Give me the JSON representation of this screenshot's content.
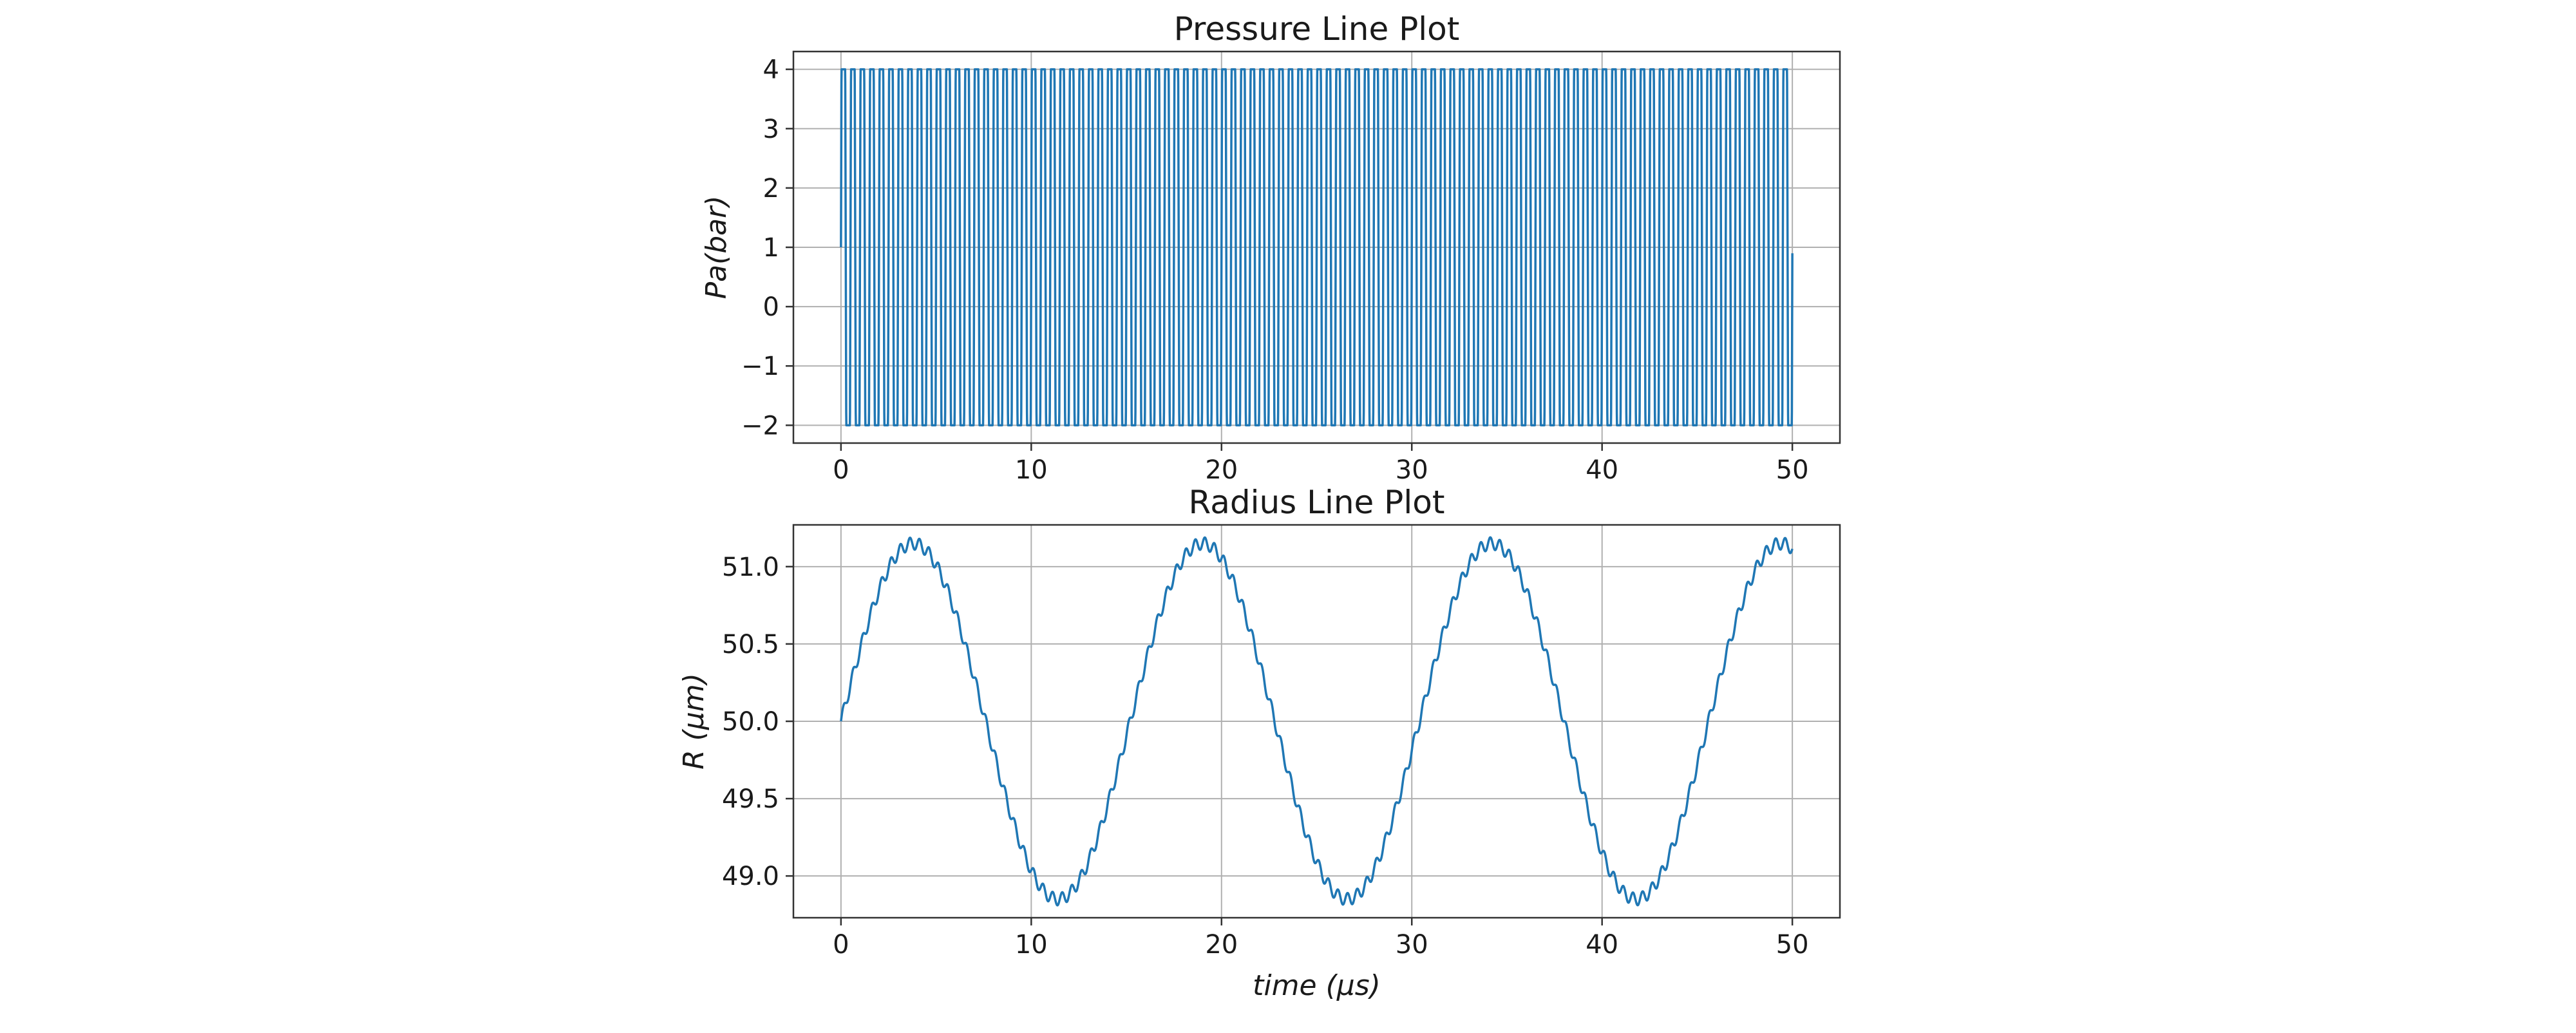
{
  "chart_data": [
    {
      "type": "line",
      "title": "Pressure Line Plot",
      "xlabel": "",
      "ylabel": "Pa(bar)",
      "xlim": [
        -2.5,
        52.5
      ],
      "ylim": [
        -2.3,
        4.3
      ],
      "xticks": [
        0,
        10,
        20,
        30,
        40,
        50
      ],
      "xtick_labels": [
        "0",
        "10",
        "20",
        "30",
        "40",
        "50"
      ],
      "yticks": [
        -2,
        -1,
        0,
        1,
        2,
        3,
        4
      ],
      "ytick_labels": [
        "−2",
        "−1",
        "0",
        "1",
        "2",
        "3",
        "4"
      ],
      "grid": true,
      "line_color": "#1f77b4",
      "signal": {
        "description": "square-like oscillation between -2 and 4 with ~2 cycles per microsecond",
        "x_range": [
          0,
          50
        ],
        "start_value": 1,
        "end_value": 0.9,
        "min": -2,
        "max": 4,
        "frequency_cycles_per_unit": 2
      }
    },
    {
      "type": "line",
      "title": "Radius Line Plot",
      "xlabel": "time (μs)",
      "ylabel": "R (μm)",
      "xlim": [
        -2.5,
        52.5
      ],
      "ylim": [
        48.73,
        51.27
      ],
      "xticks": [
        0,
        10,
        20,
        30,
        40,
        50
      ],
      "xtick_labels": [
        "0",
        "10",
        "20",
        "30",
        "40",
        "50"
      ],
      "yticks": [
        49.0,
        49.5,
        50.0,
        50.5,
        51.0
      ],
      "ytick_labels": [
        "49.0",
        "49.5",
        "50.0",
        "50.5",
        "51.0"
      ],
      "grid": true,
      "line_color": "#1f77b4",
      "signal": {
        "description": "slow sinusoid with small high-frequency ripple",
        "x_range": [
          0,
          50
        ],
        "baseline": 50.0,
        "amplitude": 1.15,
        "period": 15.2,
        "ripple_amplitude": 0.04,
        "ripple_cycles_per_unit": 2,
        "peaks": [
          [
            3.8,
            51.2
          ],
          [
            19.0,
            51.18
          ],
          [
            34.2,
            51.16
          ]
        ],
        "troughs": [
          [
            11.4,
            48.84
          ],
          [
            26.6,
            48.84
          ],
          [
            41.8,
            48.85
          ]
        ]
      }
    }
  ]
}
